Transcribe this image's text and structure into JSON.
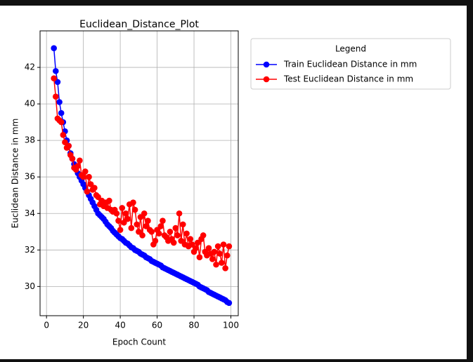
{
  "chart_data": {
    "type": "line",
    "title": "Euclidean_Distance_Plot",
    "xlabel": "Epoch Count",
    "ylabel": "Euclidean Distance in mm",
    "legend_title": "Legend",
    "legend": "upper left outside",
    "grid": true,
    "xlim": [
      -3.5,
      104
    ],
    "ylim": [
      28.4,
      44.0
    ],
    "xticks": [
      0,
      20,
      40,
      60,
      80,
      100
    ],
    "yticks": [
      30,
      32,
      34,
      36,
      38,
      40,
      42
    ],
    "x": [
      4,
      5,
      6,
      7,
      8,
      9,
      10,
      11,
      12,
      13,
      14,
      15,
      16,
      17,
      18,
      19,
      20,
      21,
      22,
      23,
      24,
      25,
      26,
      27,
      28,
      29,
      30,
      31,
      32,
      33,
      34,
      35,
      36,
      37,
      38,
      39,
      40,
      41,
      42,
      43,
      44,
      45,
      46,
      47,
      48,
      49,
      50,
      51,
      52,
      53,
      54,
      55,
      56,
      57,
      58,
      59,
      60,
      61,
      62,
      63,
      64,
      65,
      66,
      67,
      68,
      69,
      70,
      71,
      72,
      73,
      74,
      75,
      76,
      77,
      78,
      79,
      80,
      81,
      82,
      83,
      84,
      85,
      86,
      87,
      88,
      89,
      90,
      91,
      92,
      93,
      94,
      95,
      96,
      97,
      98,
      99
    ],
    "series": [
      {
        "name": "Train Euclidean Distance in mm",
        "color": "#0000ff",
        "values": [
          43.05,
          41.8,
          41.2,
          40.1,
          39.5,
          39.0,
          38.5,
          38.0,
          37.7,
          37.3,
          37.0,
          36.7,
          36.5,
          36.2,
          36.0,
          35.8,
          35.6,
          35.4,
          35.2,
          35.0,
          34.8,
          34.6,
          34.4,
          34.2,
          34.0,
          33.9,
          33.8,
          33.7,
          33.55,
          33.4,
          33.3,
          33.2,
          33.05,
          32.95,
          32.85,
          32.75,
          32.65,
          32.6,
          32.5,
          32.4,
          32.35,
          32.25,
          32.15,
          32.1,
          32.0,
          31.95,
          31.9,
          31.8,
          31.75,
          31.7,
          31.6,
          31.55,
          31.5,
          31.4,
          31.35,
          31.3,
          31.25,
          31.2,
          31.15,
          31.05,
          31.0,
          30.95,
          30.9,
          30.85,
          30.8,
          30.75,
          30.7,
          30.65,
          30.6,
          30.55,
          30.5,
          30.45,
          30.4,
          30.35,
          30.3,
          30.25,
          30.2,
          30.15,
          30.1,
          30.0,
          29.95,
          29.9,
          29.85,
          29.8,
          29.7,
          29.65,
          29.6,
          29.55,
          29.5,
          29.45,
          29.4,
          29.35,
          29.3,
          29.25,
          29.15,
          29.1
        ]
      },
      {
        "name": "Test Euclidean Distance in mm",
        "color": "#ff0000",
        "values": [
          41.4,
          40.4,
          39.2,
          39.1,
          39.0,
          38.3,
          37.9,
          37.6,
          37.7,
          37.2,
          37.0,
          36.5,
          36.4,
          36.6,
          36.9,
          36.1,
          36.0,
          36.3,
          35.2,
          36.0,
          35.6,
          35.3,
          35.4,
          35.0,
          34.9,
          34.5,
          34.7,
          34.4,
          34.6,
          34.3,
          34.7,
          34.2,
          34.1,
          34.2,
          34.0,
          33.6,
          33.1,
          34.3,
          33.5,
          34.0,
          33.7,
          34.5,
          33.2,
          34.6,
          34.2,
          33.4,
          33.0,
          33.8,
          32.8,
          34.0,
          33.3,
          33.6,
          33.1,
          33.0,
          32.3,
          32.5,
          33.1,
          32.9,
          33.3,
          33.6,
          32.8,
          32.7,
          32.5,
          33.0,
          32.6,
          32.4,
          33.2,
          32.8,
          34.0,
          32.5,
          33.4,
          32.3,
          32.9,
          32.2,
          32.6,
          32.3,
          31.9,
          32.1,
          32.4,
          31.6,
          32.6,
          32.8,
          31.9,
          31.7,
          32.1,
          31.8,
          31.5,
          31.9,
          31.2,
          32.2,
          31.8,
          31.3,
          32.3,
          31.0,
          31.7,
          32.2
        ]
      }
    ]
  }
}
